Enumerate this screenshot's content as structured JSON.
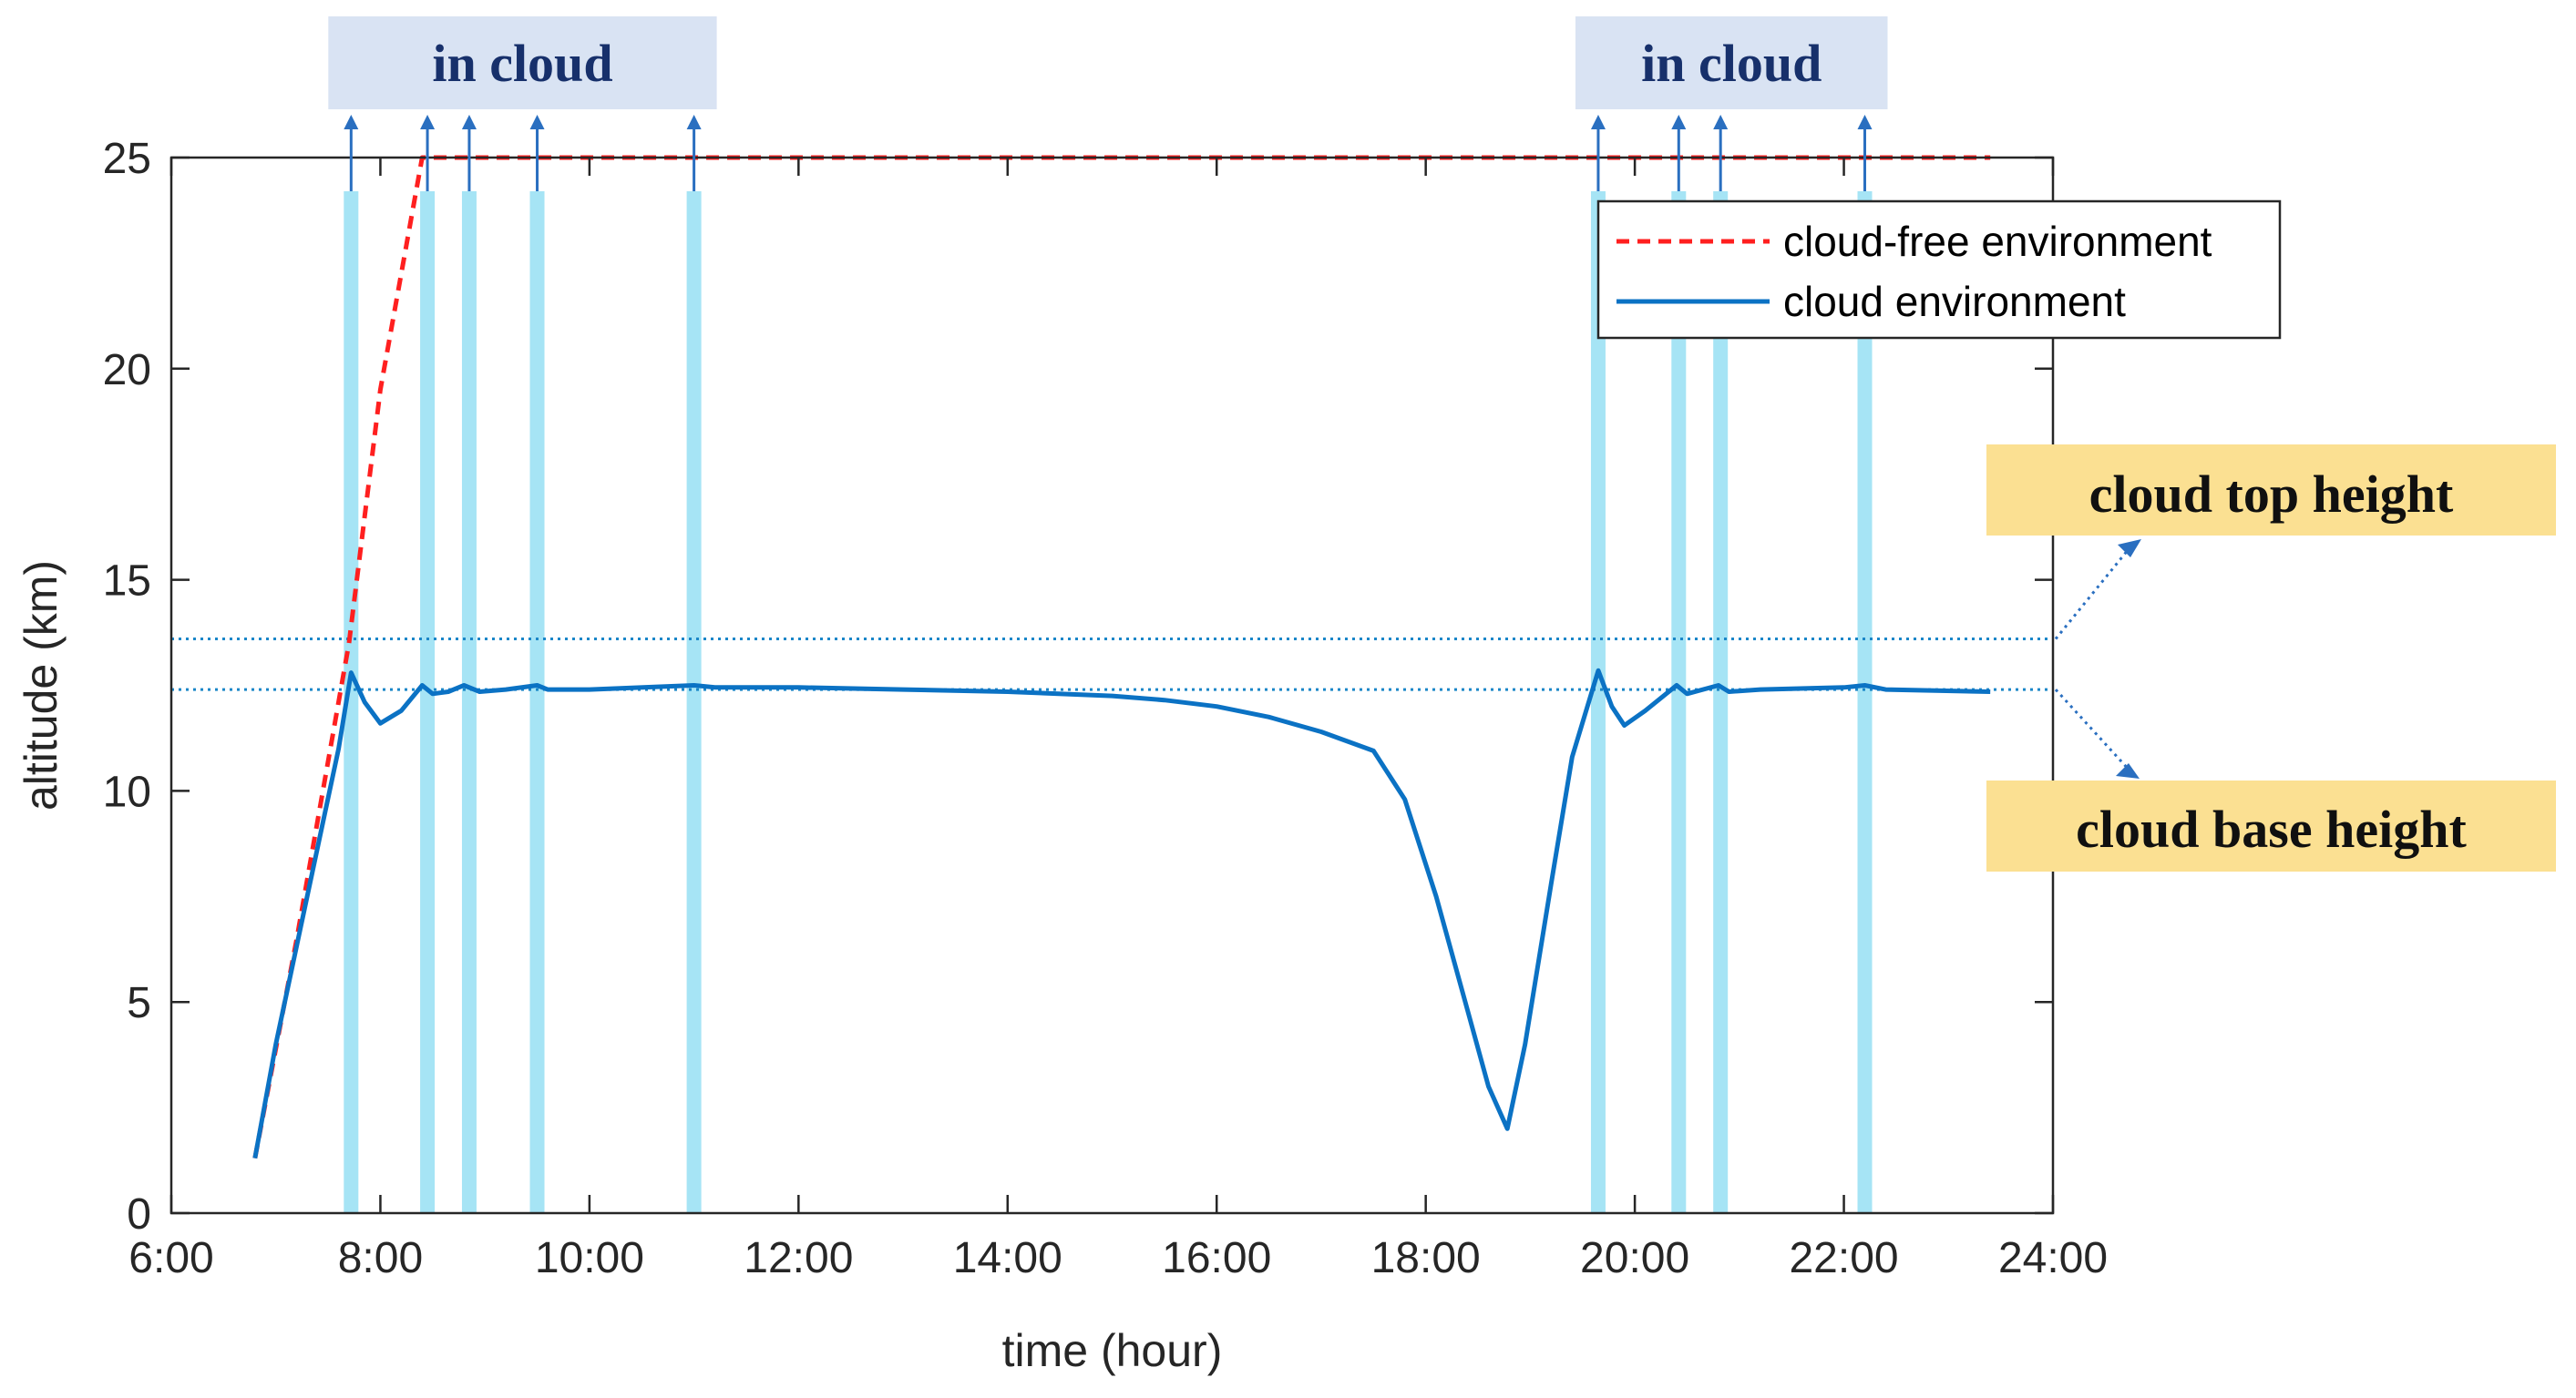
{
  "chart_data": {
    "type": "line",
    "xlabel": "time (hour)",
    "ylabel": "altitude (km)",
    "xlim": [
      6,
      24
    ],
    "ylim": [
      0,
      25
    ],
    "xticks": [
      6,
      8,
      10,
      12,
      14,
      16,
      18,
      20,
      22,
      24
    ],
    "xtick_labels": [
      "6:00",
      "8:00",
      "10:00",
      "12:00",
      "14:00",
      "16:00",
      "18:00",
      "20:00",
      "22:00",
      "24:00"
    ],
    "yticks": [
      0,
      5,
      10,
      15,
      20,
      25
    ],
    "ytick_labels": [
      "0",
      "5",
      "10",
      "15",
      "20",
      "25"
    ],
    "grid": false,
    "legend_position": "top-right",
    "series": [
      {
        "name": "cloud-free environment",
        "style": "dashed",
        "color": "#ff1f1f",
        "x": [
          6.8,
          7.2,
          7.7,
          8.0,
          8.4,
          23.4
        ],
        "y": [
          1.3,
          6.5,
          13.5,
          19.5,
          25.0,
          25.0
        ]
      },
      {
        "name": "cloud environment",
        "style": "solid",
        "color": "#0b72c4",
        "x": [
          6.8,
          7.0,
          7.3,
          7.6,
          7.72,
          7.85,
          8.0,
          8.2,
          8.4,
          8.5,
          8.65,
          8.8,
          8.95,
          9.2,
          9.5,
          9.6,
          10.0,
          11.0,
          11.2,
          12.0,
          13.0,
          14.0,
          15.0,
          15.5,
          16.0,
          16.5,
          17.0,
          17.5,
          17.8,
          18.1,
          18.4,
          18.6,
          18.78,
          18.95,
          19.2,
          19.4,
          19.65,
          19.78,
          19.9,
          20.1,
          20.4,
          20.5,
          20.8,
          20.9,
          21.2,
          22.0,
          22.2,
          22.4,
          23.4
        ],
        "y": [
          1.3,
          4.0,
          7.5,
          11.0,
          12.8,
          12.1,
          11.6,
          11.9,
          12.5,
          12.3,
          12.35,
          12.5,
          12.35,
          12.4,
          12.5,
          12.4,
          12.4,
          12.5,
          12.45,
          12.45,
          12.4,
          12.35,
          12.25,
          12.15,
          12.0,
          11.75,
          11.4,
          10.95,
          9.8,
          7.5,
          4.8,
          3.0,
          2.0,
          4.0,
          7.8,
          10.8,
          12.85,
          12.0,
          11.55,
          11.9,
          12.5,
          12.3,
          12.5,
          12.35,
          12.4,
          12.45,
          12.5,
          12.4,
          12.35
        ]
      }
    ],
    "reference_lines": [
      {
        "name": "cloud top height",
        "y": 13.6,
        "style": "dotted"
      },
      {
        "name": "cloud base height",
        "y": 12.4,
        "style": "dotted"
      }
    ],
    "in_cloud_times": [
      7.72,
      8.45,
      8.85,
      9.5,
      11.0,
      19.65,
      20.42,
      20.82,
      22.2
    ],
    "in_cloud_groups": [
      {
        "label": "in cloud",
        "times": [
          7.72,
          8.45,
          8.85,
          9.5,
          11.0
        ]
      },
      {
        "label": "in cloud",
        "times": [
          19.65,
          20.42,
          20.82,
          22.2
        ]
      }
    ],
    "annotations": {
      "cloud_top": "cloud top height",
      "cloud_base": "cloud base height"
    },
    "colors": {
      "band": "#a6e4f5",
      "arrow": "#2a6fc0",
      "in_cloud_box": "#d9e3f3",
      "in_cloud_text": "#17306b",
      "callout_box": "#fbe092",
      "callout_text": "#101010"
    }
  }
}
